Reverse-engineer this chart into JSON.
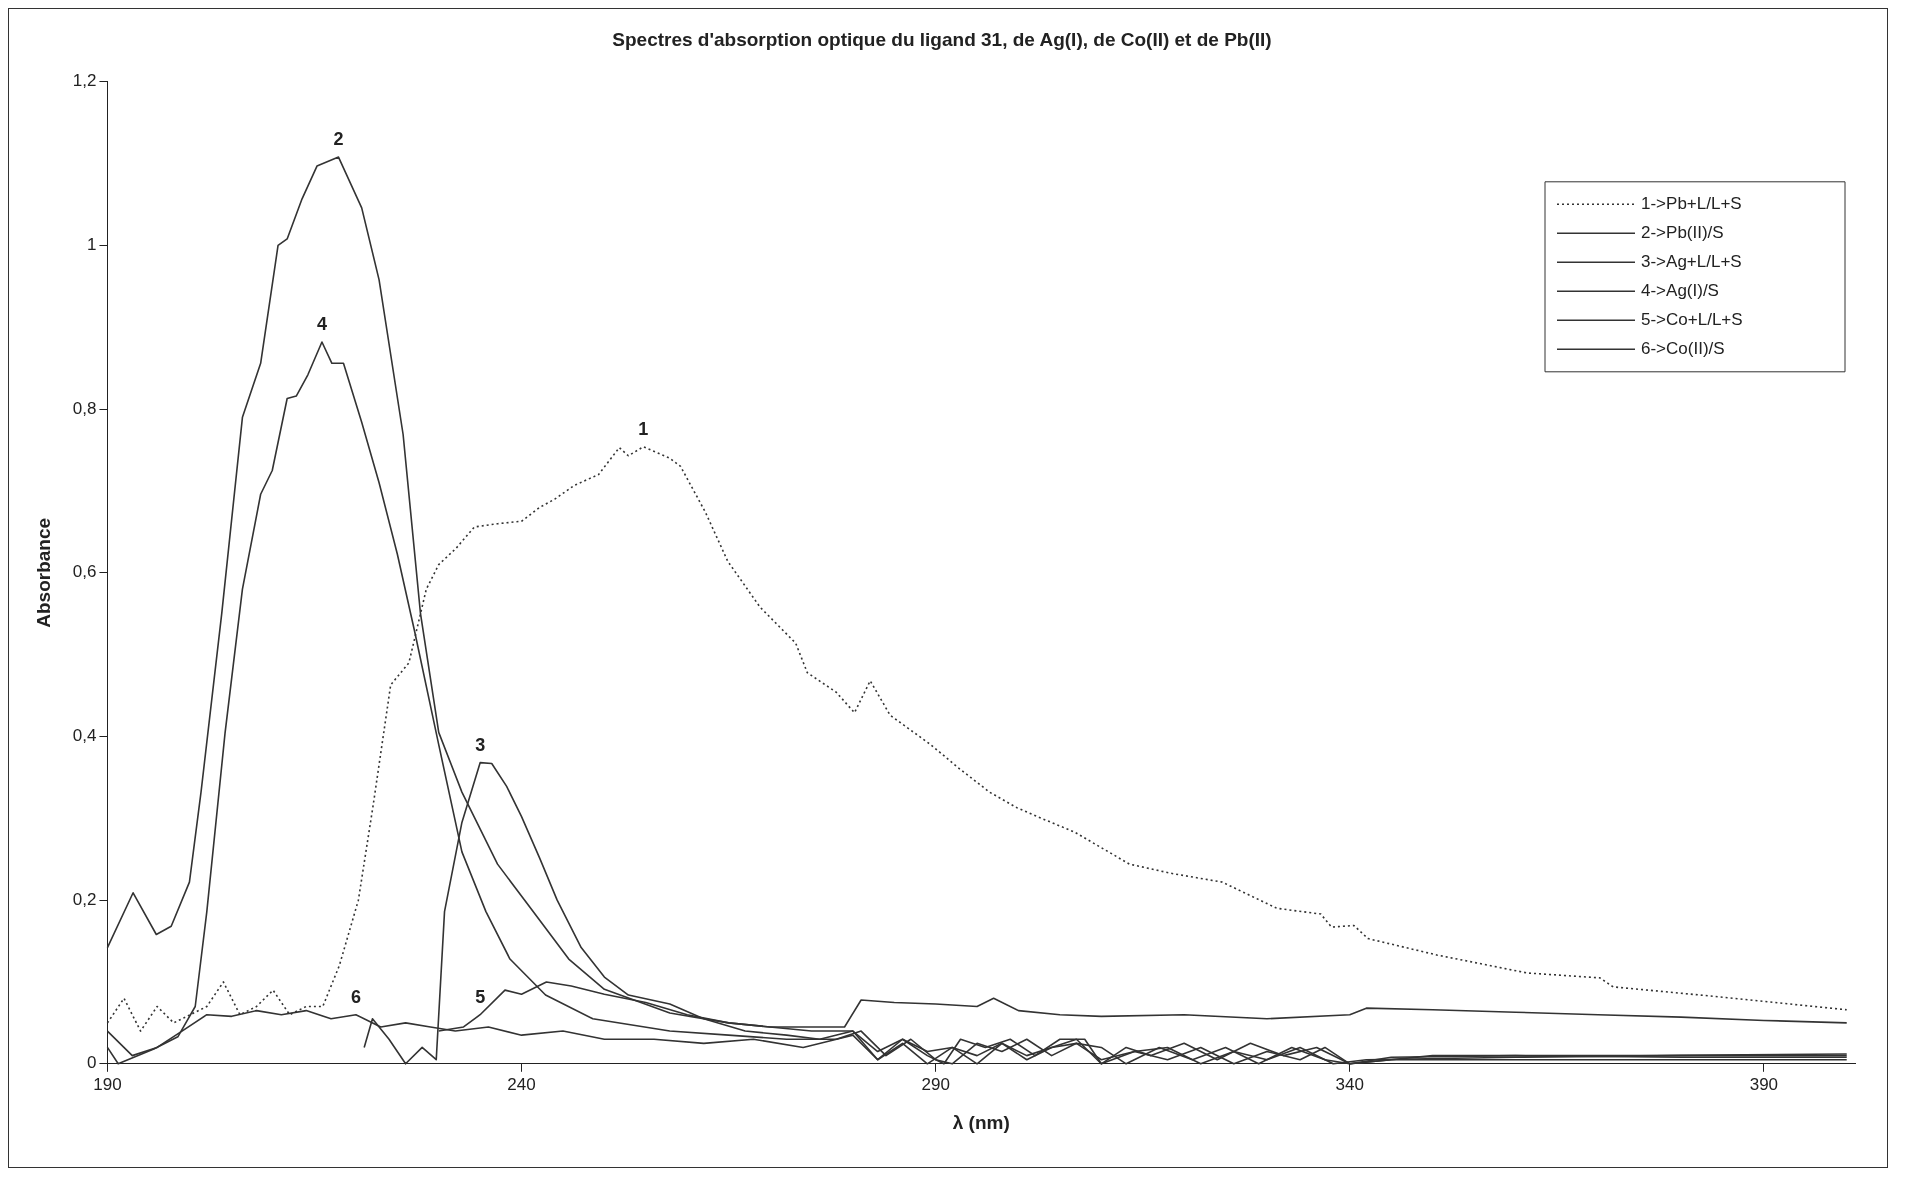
{
  "chart_data": {
    "type": "line",
    "title": "Spectres d'absorption optique du ligand 31, de Ag(I), de Co(II) et de Pb(II)",
    "xlabel": "λ (nm)",
    "ylabel": "Absorbance",
    "xlim": [
      190,
      401
    ],
    "xticks": [
      190,
      240,
      290,
      340,
      390
    ],
    "ylim": [
      0,
      1.2
    ],
    "yticks": [
      0,
      {
        "value": 0.2,
        "label": "0,2"
      },
      {
        "value": 0.4,
        "label": "0,4"
      },
      {
        "value": 0.6,
        "label": "0,6"
      },
      {
        "value": 0.8,
        "label": "0,8"
      },
      1,
      {
        "value": 1.2,
        "label": "1,2"
      }
    ],
    "grid": false,
    "legend": "top right",
    "marker": "none",
    "series": [
      {
        "name": "1->Pb+L/L+S",
        "color": "#333333",
        "line_style": "dotted",
        "x": [
          190,
          192,
          194,
          196,
          198,
          200,
          202,
          204,
          206,
          208,
          210,
          212,
          214,
          216,
          218,
          220.3,
          222.1,
          224.2,
          226.4,
          228.5,
          230,
          232.1,
          234.3,
          237.1,
          240,
          242.2,
          244,
          246.4,
          249.3,
          251.8,
          252.9,
          254.7,
          257.9,
          259.2,
          262.2,
          264.9,
          268.8,
          273.1,
          274.5,
          278,
          280.2,
          282.1,
          284.5,
          289.4,
          292.7,
          296.5,
          299.8,
          303,
          306.8,
          313.4,
          318.3,
          324.6,
          331.2,
          336.5,
          337.8,
          340.5,
          342.2,
          350.5,
          361.4,
          370.2,
          371.8,
          383.4,
          400
        ],
        "values": [
          0.05,
          0.08,
          0.04,
          0.07,
          0.05,
          0.06,
          0.07,
          0.1,
          0.06,
          0.07,
          0.09,
          0.06,
          0.07,
          0.07,
          0.12,
          0.2,
          0.317,
          0.463,
          0.49,
          0.58,
          0.61,
          0.63,
          0.656,
          0.66,
          0.663,
          0.68,
          0.69,
          0.707,
          0.72,
          0.753,
          0.743,
          0.754,
          0.74,
          0.73,
          0.674,
          0.614,
          0.558,
          0.514,
          0.478,
          0.454,
          0.429,
          0.468,
          0.426,
          0.39,
          0.362,
          0.332,
          0.313,
          0.299,
          0.283,
          0.244,
          0.233,
          0.222,
          0.19,
          0.183,
          0.167,
          0.169,
          0.153,
          0.133,
          0.111,
          0.105,
          0.094,
          0.083,
          0.066
        ]
      },
      {
        "name": "2->Pb(II)/S",
        "color": "#333333",
        "line_style": "solid",
        "x": [
          190,
          193.1,
          195.9,
          197.7,
          199.9,
          201.3,
          203.8,
          206.3,
          208.5,
          210.6,
          211.7,
          213.5,
          215.3,
          217.9,
          220.7,
          222.8,
          225.7,
          227.8,
          230,
          232.8,
          237.1,
          241.4,
          245.7,
          250,
          257.9,
          265,
          270,
          275,
          280,
          283,
          286,
          289,
          291,
          293,
          296,
          299,
          302,
          305,
          308,
          310,
          313,
          316,
          320,
          324,
          328,
          332,
          336,
          340,
          345,
          360,
          380,
          400
        ],
        "values": [
          0.142,
          0.209,
          0.158,
          0.168,
          0.222,
          0.332,
          0.55,
          0.79,
          0.856,
          1.0,
          1.008,
          1.057,
          1.097,
          1.108,
          1.046,
          0.958,
          0.769,
          0.55,
          0.405,
          0.332,
          0.244,
          0.186,
          0.128,
          0.091,
          0.062,
          0.05,
          0.045,
          0.04,
          0.04,
          0.015,
          0.03,
          0.01,
          0.0,
          0.03,
          0.02,
          0.03,
          0.01,
          0.03,
          0.03,
          0.0,
          0.02,
          0.01,
          0.025,
          0.005,
          0.025,
          0.01,
          0.02,
          0.0,
          0.008,
          0.01,
          0.008,
          0.008
        ]
      },
      {
        "name": "3->Ag+L/L+S",
        "color": "#333333",
        "line_style": "solid",
        "x": [
          221,
          222,
          224,
          226,
          228,
          229.7,
          230.7,
          232.8,
          235,
          236.4,
          238.2,
          240,
          242.2,
          244.3,
          247.2,
          250,
          252.9,
          257.9,
          262,
          267,
          272,
          276,
          280,
          283,
          286,
          289,
          292,
          295,
          298,
          301,
          304,
          307,
          310,
          314,
          318,
          322,
          326,
          330,
          334,
          337,
          340,
          345,
          370,
          400
        ],
        "values": [
          0.02,
          0.055,
          0.03,
          0.0,
          0.02,
          0.005,
          0.186,
          0.295,
          0.368,
          0.367,
          0.339,
          0.302,
          0.251,
          0.2,
          0.142,
          0.106,
          0.084,
          0.073,
          0.055,
          0.04,
          0.035,
          0.03,
          0.04,
          0.005,
          0.025,
          0.0,
          0.02,
          0.01,
          0.025,
          0.005,
          0.02,
          0.03,
          0.0,
          0.015,
          0.005,
          0.02,
          0.0,
          0.015,
          0.005,
          0.02,
          0.0,
          0.005,
          0.005,
          0.005
        ]
      },
      {
        "name": "4->Ag(I)/S",
        "color": "#333333",
        "line_style": "solid",
        "x": [
          190,
          191.3,
          195.6,
          198.5,
          200.6,
          202,
          204.2,
          206.3,
          208.5,
          209.9,
          211.7,
          212.8,
          214.2,
          215.9,
          217.1,
          218.5,
          220.7,
          222.8,
          225,
          227.1,
          230,
          232.8,
          235.7,
          238.6,
          242.9,
          248.6,
          257.9,
          265,
          272,
          278,
          281,
          284,
          287,
          290,
          292,
          295,
          298,
          301,
          304,
          307,
          310,
          313,
          317,
          321,
          325,
          329,
          333,
          337,
          340,
          350,
          375,
          400
        ],
        "values": [
          0.02,
          0.0,
          0.018,
          0.033,
          0.07,
          0.186,
          0.404,
          0.58,
          0.696,
          0.725,
          0.813,
          0.816,
          0.842,
          0.882,
          0.856,
          0.856,
          0.784,
          0.71,
          0.623,
          0.528,
          0.39,
          0.259,
          0.186,
          0.128,
          0.084,
          0.055,
          0.04,
          0.035,
          0.03,
          0.03,
          0.04,
          0.01,
          0.03,
          0.005,
          0.0,
          0.025,
          0.015,
          0.03,
          0.01,
          0.025,
          0.02,
          0.0,
          0.02,
          0.005,
          0.02,
          0.0,
          0.02,
          0.005,
          0.0,
          0.01,
          0.01,
          0.012
        ]
      },
      {
        "name": "5->Co+L/L+S",
        "color": "#333333",
        "line_style": "solid",
        "x": [
          230,
          233,
          235,
          238,
          240,
          243,
          246,
          250,
          255,
          260,
          265,
          270,
          275,
          279,
          281,
          285,
          290,
          295,
          297,
          300,
          305,
          310,
          320,
          330,
          340,
          342,
          350,
          360,
          370,
          380,
          390,
          400
        ],
        "values": [
          0.04,
          0.045,
          0.06,
          0.09,
          0.085,
          0.1,
          0.095,
          0.085,
          0.075,
          0.06,
          0.05,
          0.045,
          0.045,
          0.045,
          0.078,
          0.075,
          0.073,
          0.07,
          0.08,
          0.065,
          0.06,
          0.058,
          0.06,
          0.055,
          0.06,
          0.068,
          0.066,
          0.063,
          0.06,
          0.057,
          0.053,
          0.05
        ]
      },
      {
        "name": "6->Co(II)/S",
        "color": "#333333",
        "line_style": "solid",
        "x": [
          190,
          193,
          196,
          199,
          202,
          205,
          208,
          211,
          214,
          217,
          220,
          223,
          226,
          229,
          232,
          236,
          240,
          245,
          250,
          256,
          262,
          268,
          274,
          280,
          283,
          286,
          289,
          292,
          295,
          298,
          301,
          304,
          307,
          310,
          314,
          318,
          322,
          326,
          330,
          334,
          338,
          342,
          360,
          380,
          400
        ],
        "values": [
          0.04,
          0.01,
          0.02,
          0.04,
          0.06,
          0.058,
          0.065,
          0.06,
          0.065,
          0.055,
          0.06,
          0.045,
          0.05,
          0.045,
          0.04,
          0.045,
          0.035,
          0.04,
          0.03,
          0.03,
          0.025,
          0.03,
          0.02,
          0.035,
          0.005,
          0.03,
          0.015,
          0.02,
          0.0,
          0.025,
          0.01,
          0.02,
          0.025,
          0.005,
          0.015,
          0.02,
          0.0,
          0.015,
          0.005,
          0.02,
          0.0,
          0.005,
          0.008,
          0.01,
          0.01
        ]
      }
    ],
    "annotations": [
      {
        "text": "1",
        "x": 254.7,
        "y": 0.754
      },
      {
        "text": "2",
        "x": 217.9,
        "y": 1.108
      },
      {
        "text": "3",
        "x": 235,
        "y": 0.368
      },
      {
        "text": "4",
        "x": 215.9,
        "y": 0.882
      },
      {
        "text": "5",
        "x": 235,
        "y": 0.06
      },
      {
        "text": "6",
        "x": 220,
        "y": 0.06
      }
    ]
  }
}
